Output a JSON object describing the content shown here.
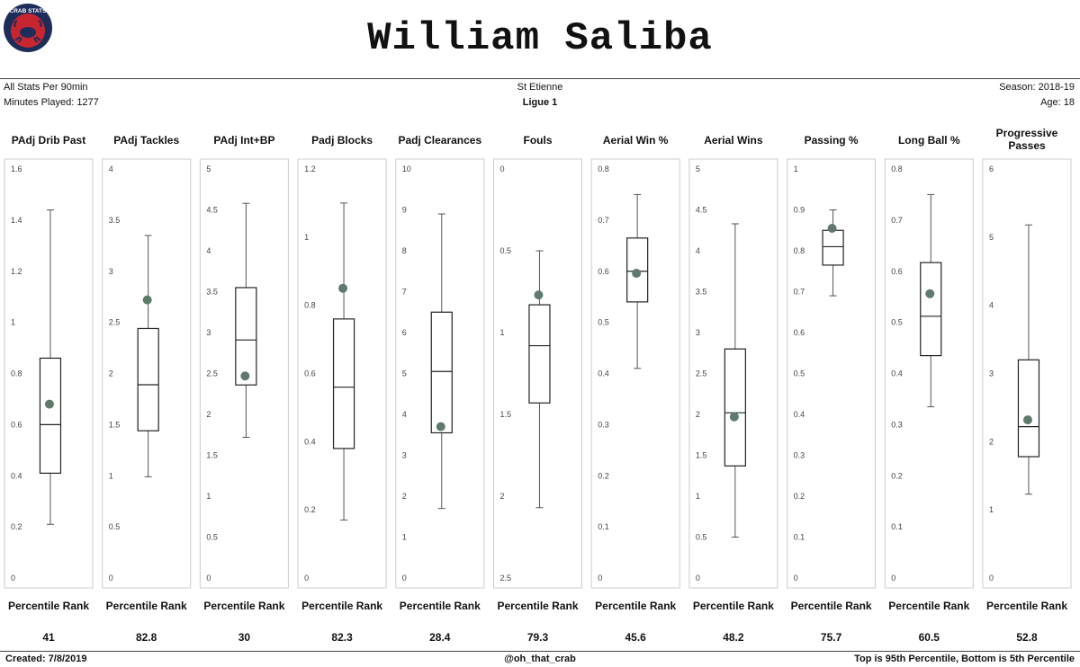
{
  "header": {
    "logo_text": "CRAB STATS",
    "player_name": "William Saliba",
    "stats_basis": "All Stats Per 90min",
    "minutes_played": "Minutes Played: 1277",
    "club": "St Etienne",
    "league": "Ligue 1",
    "season": "Season: 2018-19",
    "age": "Age: 18"
  },
  "footer": {
    "created": "Created:  7/8/2019",
    "handle": "@oh_that_crab",
    "note": "Top is 95th Percentile, Bottom is 5th Percentile"
  },
  "percentile_label": "Percentile Rank",
  "colors": {
    "marker": "#5e7a6c",
    "panel_border": "#cccccc",
    "box": "#222222"
  },
  "chart_data": {
    "type": "boxplot",
    "panels": [
      {
        "title": "PAdj Drib Past",
        "ylim": [
          0,
          1.6
        ],
        "reversed": false,
        "ticks": [
          "0",
          "0.2",
          "0.4",
          "0.6",
          "0.8",
          "1",
          "1.2",
          "1.4",
          "1.6"
        ],
        "whisker_low": 0.21,
        "q1": 0.41,
        "median": 0.6,
        "q3": 0.86,
        "whisker_high": 1.44,
        "player": 0.68,
        "percentile": "41"
      },
      {
        "title": "PAdj Tackles",
        "ylim": [
          0,
          4
        ],
        "reversed": false,
        "ticks": [
          "0",
          "0.5",
          "1",
          "1.5",
          "2",
          "2.5",
          "3",
          "3.5",
          "4"
        ],
        "whisker_low": 0.99,
        "q1": 1.44,
        "median": 1.89,
        "q3": 2.44,
        "whisker_high": 3.35,
        "player": 2.72,
        "percentile": "82.8"
      },
      {
        "title": "PAdj Int+BP",
        "ylim": [
          0,
          5
        ],
        "reversed": false,
        "ticks": [
          "0",
          "0.5",
          "1",
          "1.5",
          "2",
          "2.5",
          "3",
          "3.5",
          "4",
          "4.5",
          "5"
        ],
        "whisker_low": 1.72,
        "q1": 2.36,
        "median": 2.91,
        "q3": 3.55,
        "whisker_high": 4.58,
        "player": 2.47,
        "percentile": "30"
      },
      {
        "title": "Padj Blocks",
        "ylim": [
          0,
          1.2
        ],
        "reversed": false,
        "ticks": [
          "0",
          "0.2",
          "0.4",
          "0.6",
          "0.8",
          "1",
          "1.2"
        ],
        "whisker_low": 0.17,
        "q1": 0.38,
        "median": 0.56,
        "q3": 0.76,
        "whisker_high": 1.1,
        "player": 0.85,
        "percentile": "82.3"
      },
      {
        "title": "Padj Clearances",
        "ylim": [
          0,
          10
        ],
        "reversed": false,
        "ticks": [
          "0",
          "1",
          "2",
          "3",
          "4",
          "5",
          "6",
          "7",
          "8",
          "9",
          "10"
        ],
        "whisker_low": 1.7,
        "q1": 3.55,
        "median": 5.05,
        "q3": 6.5,
        "whisker_high": 8.9,
        "player": 3.7,
        "percentile": "28.4"
      },
      {
        "title": "Fouls",
        "ylim": [
          0,
          2.5
        ],
        "reversed": true,
        "ticks": [
          "0",
          "0.5",
          "1",
          "1.5",
          "2",
          "2.5"
        ],
        "whisker_low": 0.5,
        "q1": 0.83,
        "median": 1.08,
        "q3": 1.43,
        "whisker_high": 2.07,
        "player": 0.77,
        "percentile": "79.3"
      },
      {
        "title": "Aerial Win %",
        "ylim": [
          0,
          0.8
        ],
        "reversed": false,
        "ticks": [
          "0",
          "0.1",
          "0.2",
          "0.3",
          "0.4",
          "0.5",
          "0.6",
          "0.7",
          "0.8"
        ],
        "whisker_low": 0.41,
        "q1": 0.54,
        "median": 0.6,
        "q3": 0.665,
        "whisker_high": 0.75,
        "player": 0.596,
        "percentile": "45.6"
      },
      {
        "title": "Aerial Wins",
        "ylim": [
          0,
          5
        ],
        "reversed": false,
        "ticks": [
          "0",
          "0.5",
          "1",
          "1.5",
          "2",
          "2.5",
          "3",
          "3.5",
          "4",
          "4.5",
          "5"
        ],
        "whisker_low": 0.5,
        "q1": 1.37,
        "median": 2.02,
        "q3": 2.8,
        "whisker_high": 4.33,
        "player": 1.97,
        "percentile": "48.2"
      },
      {
        "title": "Passing %",
        "ylim": [
          0,
          1
        ],
        "reversed": false,
        "ticks": [
          "0",
          "0.1",
          "0.2",
          "0.3",
          "0.4",
          "0.5",
          "0.6",
          "0.7",
          "0.8",
          "0.9",
          "1"
        ],
        "whisker_low": 0.69,
        "q1": 0.765,
        "median": 0.81,
        "q3": 0.85,
        "whisker_high": 0.9,
        "player": 0.855,
        "percentile": "75.7"
      },
      {
        "title": "Long Ball %",
        "ylim": [
          0,
          0.8
        ],
        "reversed": false,
        "ticks": [
          "0",
          "0.1",
          "0.2",
          "0.3",
          "0.4",
          "0.5",
          "0.6",
          "0.7",
          "0.8"
        ],
        "whisker_low": 0.335,
        "q1": 0.435,
        "median": 0.512,
        "q3": 0.617,
        "whisker_high": 0.75,
        "player": 0.556,
        "percentile": "60.5"
      },
      {
        "title": "Progressive Passes",
        "ylim": [
          0,
          6
        ],
        "reversed": false,
        "ticks": [
          "0",
          "1",
          "2",
          "3",
          "4",
          "5",
          "6"
        ],
        "whisker_low": 1.23,
        "q1": 1.78,
        "median": 2.22,
        "q3": 3.2,
        "whisker_high": 5.18,
        "player": 2.32,
        "percentile": "52.8"
      }
    ]
  }
}
